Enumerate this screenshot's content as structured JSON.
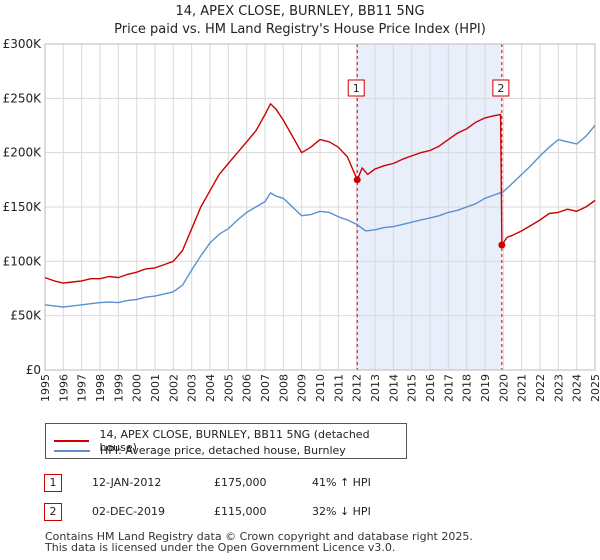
{
  "chart_data": {
    "type": "line",
    "title": "14, APEX CLOSE, BURNLEY, BB11 5NG",
    "subtitle": "Price paid vs. HM Land Registry's House Price Index (HPI)",
    "ylim": [
      0,
      300000
    ],
    "xlim": [
      1995,
      2025
    ],
    "y_ticks": [
      0,
      50000,
      100000,
      150000,
      200000,
      250000,
      300000
    ],
    "y_tick_labels": [
      "£0",
      "£50K",
      "£100K",
      "£150K",
      "£200K",
      "£250K",
      "£300K"
    ],
    "x_ticks": [
      1995,
      1996,
      1997,
      1998,
      1999,
      2000,
      2001,
      2002,
      2003,
      2004,
      2005,
      2006,
      2007,
      2008,
      2009,
      2010,
      2011,
      2012,
      2013,
      2014,
      2015,
      2016,
      2017,
      2018,
      2019,
      2020,
      2021,
      2022,
      2023,
      2024,
      2025
    ],
    "x_tick_labels": [
      "1995",
      "1996",
      "1997",
      "1998",
      "1999",
      "2000",
      "2001",
      "2002",
      "2003",
      "2004",
      "2005",
      "2006",
      "2007",
      "2008",
      "2009",
      "2010",
      "2011",
      "2012",
      "2013",
      "2014",
      "2015",
      "2016",
      "2017",
      "2018",
      "2019",
      "2020",
      "2021",
      "2022",
      "2023",
      "2024",
      "2025"
    ],
    "shaded_range": [
      2012.03,
      2019.92
    ],
    "series": [
      {
        "name": "14, APEX CLOSE, BURNLEY, BB11 5NG (detached house)",
        "color": "#cc0000",
        "x": [
          1995.0,
          1995.5,
          1996.0,
          1996.5,
          1997.0,
          1997.5,
          1998.0,
          1998.5,
          1999.0,
          1999.5,
          2000.0,
          2000.5,
          2001.0,
          2001.5,
          2002.0,
          2002.5,
          2003.0,
          2003.5,
          2004.0,
          2004.5,
          2005.0,
          2005.5,
          2006.0,
          2006.5,
          2007.0,
          2007.3,
          2007.6,
          2008.0,
          2008.5,
          2009.0,
          2009.5,
          2010.0,
          2010.5,
          2011.0,
          2011.5,
          2012.03,
          2012.3,
          2012.6,
          2013.0,
          2013.5,
          2014.0,
          2014.5,
          2015.0,
          2015.5,
          2016.0,
          2016.5,
          2017.0,
          2017.5,
          2018.0,
          2018.5,
          2019.0,
          2019.5,
          2019.85,
          2019.92,
          2020.2,
          2020.5,
          2021.0,
          2021.5,
          2022.0,
          2022.5,
          2023.0,
          2023.5,
          2024.0,
          2024.5,
          2025.0
        ],
        "values": [
          85000,
          82000,
          80000,
          81000,
          82000,
          84000,
          84000,
          86000,
          85000,
          88000,
          90000,
          93000,
          94000,
          97000,
          100000,
          110000,
          130000,
          150000,
          165000,
          180000,
          190000,
          200000,
          210000,
          220000,
          235000,
          245000,
          240000,
          230000,
          215000,
          200000,
          205000,
          212000,
          210000,
          205000,
          196000,
          175000,
          186000,
          180000,
          185000,
          188000,
          190000,
          194000,
          197000,
          200000,
          202000,
          206000,
          212000,
          218000,
          222000,
          228000,
          232000,
          234000,
          235000,
          115000,
          122000,
          124000,
          128000,
          133000,
          138000,
          144000,
          145000,
          148000,
          146000,
          150000,
          156000
        ]
      },
      {
        "name": "HPI: Average price, detached house, Burnley",
        "color": "#5b8fd0",
        "x": [
          1995.0,
          1995.5,
          1996.0,
          1996.5,
          1997.0,
          1997.5,
          1998.0,
          1998.5,
          1999.0,
          1999.5,
          2000.0,
          2000.5,
          2001.0,
          2001.5,
          2002.0,
          2002.5,
          2003.0,
          2003.5,
          2004.0,
          2004.5,
          2005.0,
          2005.5,
          2006.0,
          2006.5,
          2007.0,
          2007.3,
          2007.6,
          2008.0,
          2008.5,
          2009.0,
          2009.5,
          2010.0,
          2010.5,
          2011.0,
          2011.5,
          2012.0,
          2012.5,
          2013.0,
          2013.5,
          2014.0,
          2014.5,
          2015.0,
          2015.5,
          2016.0,
          2016.5,
          2017.0,
          2017.5,
          2018.0,
          2018.5,
          2019.0,
          2019.5,
          2020.0,
          2020.5,
          2021.0,
          2021.5,
          2022.0,
          2022.5,
          2023.0,
          2023.5,
          2024.0,
          2024.5,
          2025.0
        ],
        "values": [
          60000,
          59000,
          58000,
          59000,
          60000,
          61000,
          62000,
          62500,
          62000,
          64000,
          65000,
          67000,
          68000,
          70000,
          72000,
          78000,
          92000,
          105000,
          117000,
          125000,
          130000,
          138000,
          145000,
          150000,
          155000,
          163000,
          160000,
          158000,
          150000,
          142000,
          143000,
          146000,
          145000,
          141000,
          138000,
          134000,
          128000,
          129000,
          131000,
          132000,
          134000,
          136000,
          138000,
          140000,
          142000,
          145000,
          147000,
          150000,
          153000,
          158000,
          161000,
          164000,
          172000,
          180000,
          188000,
          197000,
          205000,
          212000,
          210000,
          208000,
          215000,
          225000
        ]
      }
    ],
    "markers": [
      {
        "label": "1",
        "x": 2012.03,
        "value": 175000
      },
      {
        "label": "2",
        "x": 2019.92,
        "value": 115000
      }
    ]
  },
  "legend": {
    "items": [
      {
        "label": "14, APEX CLOSE, BURNLEY, BB11 5NG (detached house)",
        "color": "#cc0000"
      },
      {
        "label": "HPI: Average price, detached house, Burnley",
        "color": "#5b8fd0"
      }
    ]
  },
  "transactions": [
    {
      "id": "1",
      "date": "12-JAN-2012",
      "price": "£175,000",
      "hpi": "41% ↑ HPI"
    },
    {
      "id": "2",
      "date": "02-DEC-2019",
      "price": "£115,000",
      "hpi": "32% ↓ HPI"
    }
  ],
  "footer": {
    "line1": "Contains HM Land Registry data © Crown copyright and database right 2025.",
    "line2": "This data is licensed under the Open Government Licence v3.0."
  }
}
